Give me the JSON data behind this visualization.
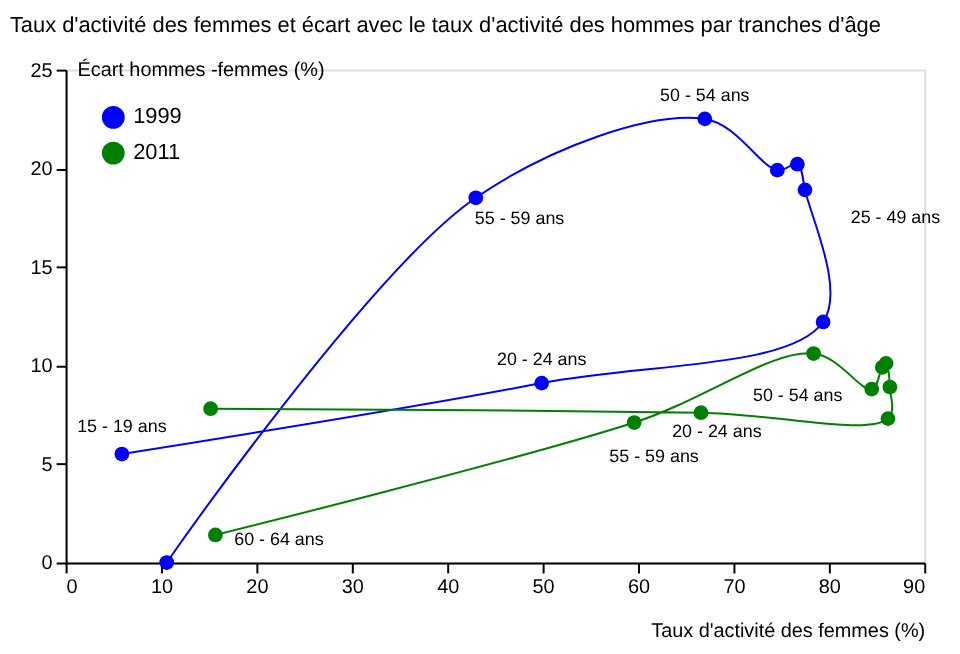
{
  "chart_data": {
    "type": "line",
    "title": "Taux d'activité des femmes et écart avec le taux d'activité des hommes par tranches d'âge",
    "xlabel": "Taux d'activité des femmes (%)",
    "ylabel": "Écart hommes -femmes (%)",
    "xlim": [
      0,
      90
    ],
    "xticks": [
      0,
      10,
      20,
      30,
      40,
      50,
      60,
      70,
      80,
      90
    ],
    "ylim": [
      0,
      25
    ],
    "yticks": [
      0,
      5,
      10,
      15,
      20,
      25
    ],
    "marker": "circle",
    "grid": false,
    "legend": "top left",
    "series": [
      {
        "name": "1999",
        "color": "#0000ff",
        "x": [
          5.9,
          49.9,
          79.4,
          77.5,
          76.7,
          74.6,
          67.0,
          43.0,
          10.6
        ],
        "values": [
          5.5,
          9.1,
          12.2,
          18.9,
          20.2,
          19.9,
          22.5,
          18.5,
          0.0
        ]
      },
      {
        "name": "2011",
        "color": "#008000",
        "x": [
          15.2,
          66.6,
          86.2,
          86.4,
          86.0,
          85.6,
          84.5,
          78.4,
          59.6,
          15.7
        ],
        "values": [
          7.8,
          7.6,
          7.3,
          8.9,
          10.1,
          9.9,
          8.8,
          10.6,
          7.1,
          1.4
        ]
      }
    ],
    "annotations": [
      {
        "text": "50 - 54 ans",
        "x": 67.0,
        "y": 22.5
      },
      {
        "text": "55 - 59 ans",
        "x": 43.0,
        "y": 18.5
      },
      "25 - 49 ans",
      {
        "text": "20 - 24 ans",
        "x": 49.9,
        "y": 9.1
      },
      {
        "text": "15 - 19 ans",
        "x": 5.9,
        "y": 5.5
      },
      {
        "text": "50 - 54 ans",
        "x": 78.4,
        "y": 10.6
      },
      {
        "text": "20 - 24 ans",
        "x": 66.6,
        "y": 7.6
      },
      {
        "text": "55 - 59 ans",
        "x": 59.6,
        "y": 7.1
      },
      {
        "text": "60 - 64 ans",
        "x": 15.7,
        "y": 1.4
      }
    ]
  }
}
